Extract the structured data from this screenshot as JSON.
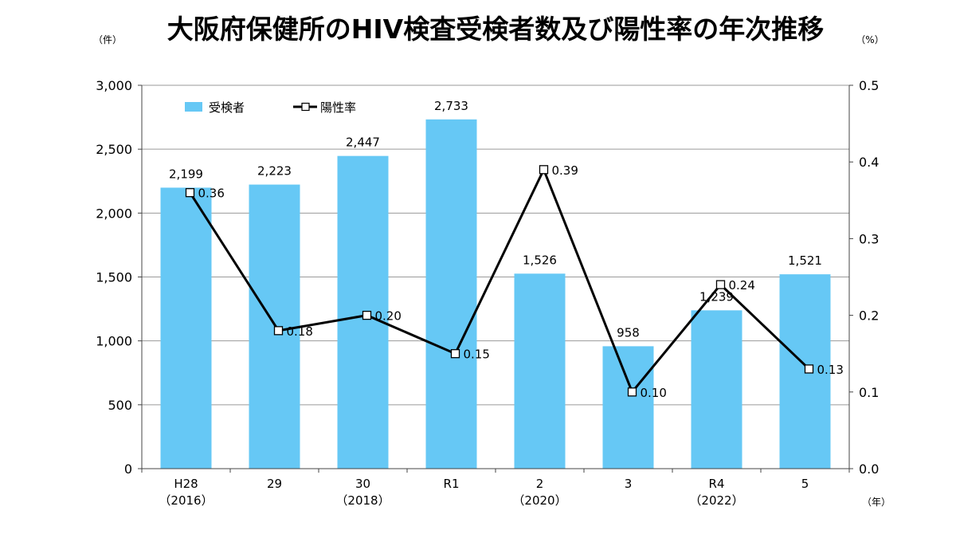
{
  "chart_data": {
    "type": "bar",
    "title": "大阪府保健所のHIV検査受検者数及び陽性率の年次推移",
    "left_unit": "（件）",
    "right_unit": "（%）",
    "x_unit": "（年）",
    "categories": [
      [
        "H28",
        "（2016）"
      ],
      [
        "29",
        ""
      ],
      [
        "30",
        "（2018）"
      ],
      [
        "R1",
        ""
      ],
      [
        "2",
        "（2020）"
      ],
      [
        "3",
        ""
      ],
      [
        "R4",
        "（2022）"
      ],
      [
        "5",
        ""
      ]
    ],
    "series": [
      {
        "name": "受検者",
        "type": "bar",
        "axis": "left",
        "color": "#66c8f5",
        "values": [
          2199,
          2223,
          2447,
          2733,
          1526,
          958,
          1239,
          1521
        ],
        "labels": [
          "2,199",
          "2,223",
          "2,447",
          "2,733",
          "1,526",
          "958",
          "1,239",
          "1,521"
        ]
      },
      {
        "name": "陽性率",
        "type": "line",
        "axis": "right",
        "color": "#000000",
        "values": [
          0.36,
          0.18,
          0.2,
          0.15,
          0.39,
          0.1,
          0.24,
          0.13
        ],
        "labels": [
          "0.36",
          "0.18",
          "0.20",
          "0.15",
          "0.39",
          "0.10",
          "0.24",
          "0.13"
        ]
      }
    ],
    "y_left": {
      "lim": [
        0,
        3000
      ],
      "ticks": [
        0,
        500,
        1000,
        1500,
        2000,
        2500,
        3000
      ],
      "tick_labels": [
        "0",
        "500",
        "1,000",
        "1,500",
        "2,000",
        "2,500",
        "3,000"
      ]
    },
    "y_right": {
      "lim": [
        0,
        0.5
      ],
      "ticks": [
        0,
        0.1,
        0.2,
        0.3,
        0.4,
        0.5
      ],
      "tick_labels": [
        "0.0",
        "0.1",
        "0.2",
        "0.3",
        "0.4",
        "0.5"
      ]
    },
    "grid": true,
    "legend_position": "top-left"
  }
}
